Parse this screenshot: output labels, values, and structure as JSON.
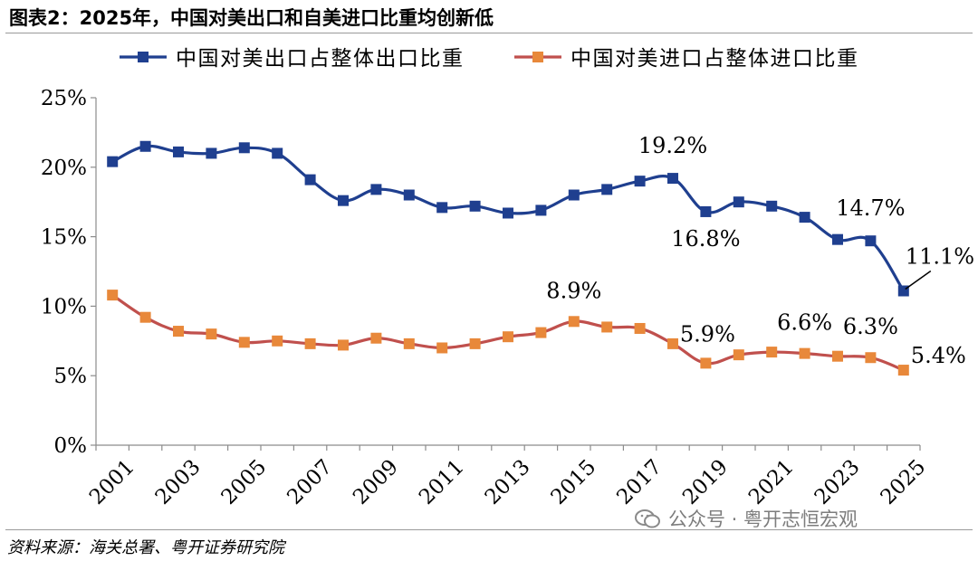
{
  "title": "图表2：2025年，中国对美出口和自美进口比重均创新低",
  "source": "资料来源：海关总署、粤开证券研究院",
  "watermark": "公众号 · 粤开志恒宏观",
  "chart_data": {
    "type": "line",
    "x": [
      "2001",
      "2002",
      "2003",
      "2004",
      "2005",
      "2006",
      "2007",
      "2008",
      "2009",
      "2010",
      "2011",
      "2012",
      "2013",
      "2014",
      "2015",
      "2016",
      "2017",
      "2018",
      "2019",
      "2020",
      "2021",
      "2022",
      "2023",
      "2024",
      "2025"
    ],
    "x_tick_labels": [
      "2001",
      "2003",
      "2005",
      "2007",
      "2009",
      "2011",
      "2013",
      "2015",
      "2017",
      "2019",
      "2021",
      "2023",
      "2025"
    ],
    "y_tick_labels": [
      "0%",
      "5%",
      "10%",
      "15%",
      "20%",
      "25%"
    ],
    "ylim": [
      0,
      25
    ],
    "xlabel": "",
    "ylabel": "",
    "legend_position": "top",
    "grid": false,
    "series": [
      {
        "name": "中国对美出口占整体出口比重",
        "color": "#1f3f8f",
        "marker": "square",
        "values": [
          20.4,
          21.5,
          21.1,
          21.0,
          21.4,
          21.0,
          19.1,
          17.6,
          18.4,
          18.0,
          17.1,
          17.2,
          16.7,
          16.9,
          18.0,
          18.4,
          19.0,
          19.2,
          16.8,
          17.5,
          17.2,
          16.4,
          14.8,
          14.7,
          11.1
        ]
      },
      {
        "name": "中国对美进口占整体进口比重",
        "color": "#e8883a",
        "line_color": "#c0504d",
        "marker": "square",
        "values": [
          10.8,
          9.2,
          8.2,
          8.0,
          7.4,
          7.5,
          7.3,
          7.2,
          7.7,
          7.3,
          7.0,
          7.3,
          7.8,
          8.1,
          8.9,
          8.5,
          8.4,
          7.3,
          5.9,
          6.5,
          6.7,
          6.6,
          6.4,
          6.3,
          5.4
        ]
      }
    ],
    "annotations": [
      {
        "text": "19.2%",
        "series": 0,
        "x": "2018"
      },
      {
        "text": "16.8%",
        "series": 0,
        "x": "2019"
      },
      {
        "text": "14.7%",
        "series": 0,
        "x": "2024"
      },
      {
        "text": "11.1%",
        "series": 0,
        "x": "2025"
      },
      {
        "text": "8.9%",
        "series": 1,
        "x": "2015"
      },
      {
        "text": "5.9%",
        "series": 1,
        "x": "2019"
      },
      {
        "text": "6.6%",
        "series": 1,
        "x": "2022"
      },
      {
        "text": "6.3%",
        "series": 1,
        "x": "2024"
      },
      {
        "text": "5.4%",
        "series": 1,
        "x": "2025"
      }
    ]
  }
}
